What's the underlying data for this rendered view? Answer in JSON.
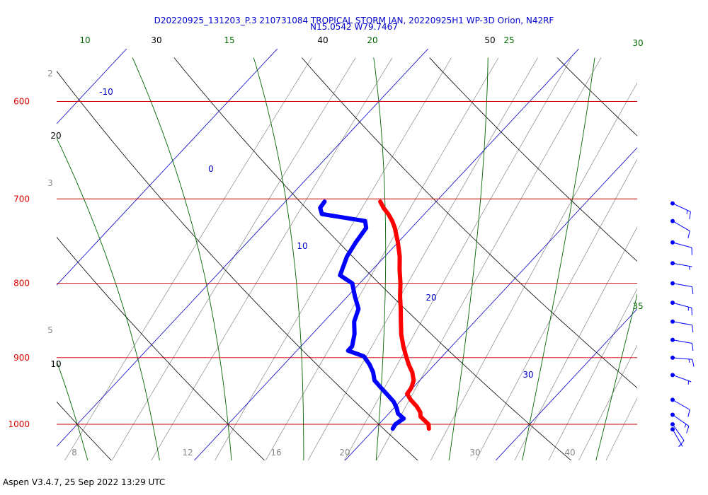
{
  "header": {
    "title_line1": "D20220925_131203_P.3 210731084 TROPICAL STORM IAN, 20220925H1 WP-3D Orion, N42RF",
    "title_line2": "N15.0542 W79.7467"
  },
  "footer": {
    "text": "Aspen V3.4.7, 25 Sep 2022  13:29 UTC"
  },
  "chart_data": {
    "type": "line",
    "subtype": "skew-T log-P thermodynamic diagram",
    "y_axis": {
      "scale": "log",
      "reversed": true,
      "ylim": [
        1050,
        600
      ],
      "label_values": [
        600,
        700,
        800,
        900,
        1000
      ]
    },
    "x_axis": {
      "label_values": [
        8,
        12,
        16,
        20,
        30,
        40
      ]
    },
    "isobars": [
      600,
      700,
      800,
      900,
      1000
    ],
    "isotherm_labels": [
      -10,
      0,
      10,
      20,
      30
    ],
    "dry_adiabat_labels": [
      10,
      20,
      30,
      40,
      50
    ],
    "moist_adiabat_labels": [
      10,
      15,
      20,
      25,
      30,
      35
    ],
    "mixing_ratio_labels": [
      2,
      3,
      5
    ],
    "series": [
      {
        "color": "#ff0000",
        "points": [
          {
            "p": 1007,
            "t": 23.6
          },
          {
            "p": 1000,
            "t": 23.3
          },
          {
            "p": 994,
            "t": 22.8
          },
          {
            "p": 988,
            "t": 22.3
          },
          {
            "p": 981,
            "t": 22.0
          },
          {
            "p": 972,
            "t": 21.4
          },
          {
            "p": 962,
            "t": 20.6
          },
          {
            "p": 953,
            "t": 20.0
          },
          {
            "p": 944,
            "t": 19.9
          },
          {
            "p": 933,
            "t": 19.6
          },
          {
            "p": 921,
            "t": 19.0
          },
          {
            "p": 910,
            "t": 18.3
          },
          {
            "p": 898,
            "t": 17.6
          },
          {
            "p": 884,
            "t": 16.8
          },
          {
            "p": 867,
            "t": 15.9
          },
          {
            "p": 850,
            "t": 15.1
          },
          {
            "p": 833,
            "t": 14.3
          },
          {
            "p": 817,
            "t": 13.5
          },
          {
            "p": 800,
            "t": 12.7
          },
          {
            "p": 783,
            "t": 11.8
          },
          {
            "p": 767,
            "t": 11.0
          },
          {
            "p": 750,
            "t": 10.0
          },
          {
            "p": 733,
            "t": 8.9
          },
          {
            "p": 725,
            "t": 8.3
          },
          {
            "p": 717,
            "t": 7.6
          },
          {
            "p": 710,
            "t": 6.9
          },
          {
            "p": 703,
            "t": 6.3
          }
        ]
      },
      {
        "color": "#0000ff",
        "points": [
          {
            "p": 1007,
            "t": 21.2
          },
          {
            "p": 1000,
            "t": 21.1
          },
          {
            "p": 991,
            "t": 21.3
          },
          {
            "p": 983,
            "t": 20.6
          },
          {
            "p": 975,
            "t": 20.2
          },
          {
            "p": 965,
            "t": 19.6
          },
          {
            "p": 955,
            "t": 18.8
          },
          {
            "p": 944,
            "t": 17.9
          },
          {
            "p": 933,
            "t": 17.0
          },
          {
            "p": 921,
            "t": 16.4
          },
          {
            "p": 910,
            "t": 15.7
          },
          {
            "p": 898,
            "t": 14.8
          },
          {
            "p": 890,
            "t": 13.4
          },
          {
            "p": 884,
            "t": 13.4
          },
          {
            "p": 867,
            "t": 12.8
          },
          {
            "p": 850,
            "t": 12.0
          },
          {
            "p": 833,
            "t": 11.5
          },
          {
            "p": 817,
            "t": 10.5
          },
          {
            "p": 800,
            "t": 9.5
          },
          {
            "p": 790,
            "t": 8.2
          },
          {
            "p": 767,
            "t": 7.5
          },
          {
            "p": 750,
            "t": 7.2
          },
          {
            "p": 733,
            "t": 7.0
          },
          {
            "p": 725,
            "t": 6.5
          },
          {
            "p": 717,
            "t": 3.2
          },
          {
            "p": 710,
            "t": 2.7
          },
          {
            "p": 703,
            "t": 2.6
          }
        ]
      }
    ],
    "wind_barbs": {
      "color": "#0000ff",
      "levels": [
        {
          "p": 1008,
          "dir": 150,
          "speed": 5
        },
        {
          "p": 1000,
          "dir": 145,
          "speed": 10
        },
        {
          "p": 985,
          "dir": 125,
          "speed": 15
        },
        {
          "p": 962,
          "dir": 120,
          "speed": 10
        },
        {
          "p": 925,
          "dir": 110,
          "speed": 5
        },
        {
          "p": 900,
          "dir": 95,
          "speed": 15
        },
        {
          "p": 875,
          "dir": 100,
          "speed": 10
        },
        {
          "p": 850,
          "dir": 100,
          "speed": 10
        },
        {
          "p": 825,
          "dir": 105,
          "speed": 15
        },
        {
          "p": 800,
          "dir": 100,
          "speed": 10
        },
        {
          "p": 775,
          "dir": 100,
          "speed": 5
        },
        {
          "p": 750,
          "dir": 105,
          "speed": 10
        },
        {
          "p": 725,
          "dir": 120,
          "speed": 10
        },
        {
          "p": 705,
          "dir": 115,
          "speed": 15
        }
      ]
    }
  },
  "colors": {
    "isobar": "#cc0000",
    "isotherm": "#0000cc",
    "dry_adiabat": "#000000",
    "moist_adiabat": "#006600",
    "mixing_ratio": "#888888"
  }
}
